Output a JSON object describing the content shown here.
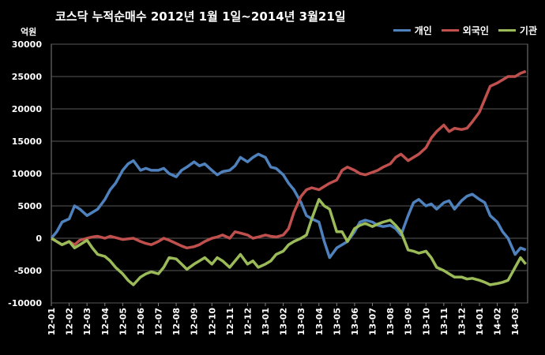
{
  "chart_data": {
    "type": "line",
    "title": "코스닥  누적순매수 2012년 1월 1일~2014년 3월21일",
    "unit_label": "억원",
    "ylim": [
      -10000,
      30000
    ],
    "yticks": [
      30000,
      25000,
      20000,
      15000,
      10000,
      5000,
      0,
      -5000,
      -10000
    ],
    "grid": true,
    "legend_position": "top-right",
    "x_ticks": [
      "12-01",
      "12-02",
      "12-03",
      "12-04",
      "12-05",
      "12-06",
      "12-07",
      "12-08",
      "12-09",
      "12-10",
      "12-11",
      "12-12",
      "13-01",
      "13-02",
      "13-03",
      "13-04",
      "13-05",
      "13-06",
      "13-07",
      "13-08",
      "13-09",
      "13-10",
      "13-11",
      "13-12",
      "14-01",
      "14-02",
      "14-03"
    ],
    "x_range": [
      0,
      26.7
    ],
    "series": [
      {
        "name": "개인",
        "color": "#4f81bd",
        "points": [
          [
            0,
            0
          ],
          [
            0.3,
            1000
          ],
          [
            0.6,
            2500
          ],
          [
            1,
            3000
          ],
          [
            1.3,
            5000
          ],
          [
            1.6,
            4500
          ],
          [
            2,
            3500
          ],
          [
            2.3,
            4000
          ],
          [
            2.6,
            4500
          ],
          [
            3,
            6000
          ],
          [
            3.3,
            7500
          ],
          [
            3.6,
            8500
          ],
          [
            4,
            10500
          ],
          [
            4.3,
            11500
          ],
          [
            4.6,
            12000
          ],
          [
            5,
            10500
          ],
          [
            5.3,
            10800
          ],
          [
            5.6,
            10500
          ],
          [
            6,
            10500
          ],
          [
            6.3,
            10800
          ],
          [
            6.6,
            10000
          ],
          [
            7,
            9500
          ],
          [
            7.3,
            10500
          ],
          [
            7.6,
            11000
          ],
          [
            8,
            11800
          ],
          [
            8.3,
            11200
          ],
          [
            8.6,
            11500
          ],
          [
            9,
            10500
          ],
          [
            9.3,
            9800
          ],
          [
            9.6,
            10300
          ],
          [
            10,
            10500
          ],
          [
            10.3,
            11200
          ],
          [
            10.6,
            12500
          ],
          [
            11,
            11800
          ],
          [
            11.3,
            12500
          ],
          [
            11.6,
            13000
          ],
          [
            12,
            12500
          ],
          [
            12.3,
            11000
          ],
          [
            12.6,
            10800
          ],
          [
            13,
            9800
          ],
          [
            13.3,
            8500
          ],
          [
            13.6,
            7500
          ],
          [
            14,
            5500
          ],
          [
            14.3,
            3500
          ],
          [
            14.6,
            3000
          ],
          [
            15,
            2500
          ],
          [
            15.3,
            -500
          ],
          [
            15.6,
            -3000
          ],
          [
            16,
            -1500
          ],
          [
            16.3,
            -1000
          ],
          [
            16.6,
            -500
          ],
          [
            17,
            1000
          ],
          [
            17.3,
            2500
          ],
          [
            17.6,
            2800
          ],
          [
            18,
            2500
          ],
          [
            18.3,
            2000
          ],
          [
            18.6,
            1800
          ],
          [
            19,
            2000
          ],
          [
            19.3,
            1500
          ],
          [
            19.6,
            500
          ],
          [
            20,
            3500
          ],
          [
            20.3,
            5500
          ],
          [
            20.6,
            6000
          ],
          [
            21,
            5000
          ],
          [
            21.3,
            5300
          ],
          [
            21.6,
            4500
          ],
          [
            22,
            5500
          ],
          [
            22.3,
            5800
          ],
          [
            22.6,
            4500
          ],
          [
            23,
            5800
          ],
          [
            23.3,
            6500
          ],
          [
            23.6,
            6800
          ],
          [
            24,
            6000
          ],
          [
            24.3,
            5500
          ],
          [
            24.6,
            3500
          ],
          [
            25,
            2500
          ],
          [
            25.3,
            1000
          ],
          [
            25.6,
            0
          ],
          [
            26,
            -2500
          ],
          [
            26.3,
            -1500
          ],
          [
            26.6,
            -1800
          ]
        ]
      },
      {
        "name": "외국인",
        "color": "#c0504d",
        "points": [
          [
            0,
            0
          ],
          [
            0.3,
            -500
          ],
          [
            0.6,
            -1000
          ],
          [
            1,
            -500
          ],
          [
            1.3,
            -1000
          ],
          [
            1.6,
            -300
          ],
          [
            2,
            0
          ],
          [
            2.3,
            200
          ],
          [
            2.6,
            300
          ],
          [
            3,
            0
          ],
          [
            3.3,
            300
          ],
          [
            3.6,
            100
          ],
          [
            4,
            -200
          ],
          [
            4.3,
            -100
          ],
          [
            4.6,
            0
          ],
          [
            5,
            -500
          ],
          [
            5.3,
            -800
          ],
          [
            5.6,
            -1000
          ],
          [
            6,
            -500
          ],
          [
            6.3,
            0
          ],
          [
            6.6,
            -300
          ],
          [
            7,
            -800
          ],
          [
            7.3,
            -1200
          ],
          [
            7.6,
            -1500
          ],
          [
            8,
            -1300
          ],
          [
            8.3,
            -1000
          ],
          [
            8.6,
            -500
          ],
          [
            9,
            0
          ],
          [
            9.3,
            200
          ],
          [
            9.6,
            500
          ],
          [
            10,
            0
          ],
          [
            10.3,
            1000
          ],
          [
            10.6,
            800
          ],
          [
            11,
            500
          ],
          [
            11.3,
            0
          ],
          [
            11.6,
            200
          ],
          [
            12,
            500
          ],
          [
            12.3,
            300
          ],
          [
            12.6,
            200
          ],
          [
            13,
            500
          ],
          [
            13.3,
            1500
          ],
          [
            13.6,
            4000
          ],
          [
            14,
            6500
          ],
          [
            14.3,
            7500
          ],
          [
            14.6,
            7800
          ],
          [
            15,
            7500
          ],
          [
            15.3,
            8000
          ],
          [
            15.6,
            8500
          ],
          [
            16,
            9000
          ],
          [
            16.3,
            10500
          ],
          [
            16.6,
            11000
          ],
          [
            17,
            10500
          ],
          [
            17.3,
            10000
          ],
          [
            17.6,
            9800
          ],
          [
            18,
            10200
          ],
          [
            18.3,
            10500
          ],
          [
            18.6,
            11000
          ],
          [
            19,
            11500
          ],
          [
            19.3,
            12500
          ],
          [
            19.6,
            13000
          ],
          [
            20,
            12000
          ],
          [
            20.3,
            12500
          ],
          [
            20.6,
            13000
          ],
          [
            21,
            14000
          ],
          [
            21.3,
            15500
          ],
          [
            21.6,
            16500
          ],
          [
            22,
            17500
          ],
          [
            22.3,
            16500
          ],
          [
            22.6,
            17000
          ],
          [
            23,
            16800
          ],
          [
            23.3,
            17000
          ],
          [
            23.6,
            18000
          ],
          [
            24,
            19500
          ],
          [
            24.3,
            21500
          ],
          [
            24.6,
            23500
          ],
          [
            25,
            24000
          ],
          [
            25.3,
            24500
          ],
          [
            25.6,
            25000
          ],
          [
            26,
            25000
          ],
          [
            26.3,
            25500
          ],
          [
            26.6,
            25800
          ]
        ]
      },
      {
        "name": "기관",
        "color": "#9bbb59",
        "points": [
          [
            0,
            0
          ],
          [
            0.3,
            -500
          ],
          [
            0.6,
            -1000
          ],
          [
            1,
            -500
          ],
          [
            1.3,
            -1500
          ],
          [
            1.6,
            -1000
          ],
          [
            2,
            -300
          ],
          [
            2.3,
            -1500
          ],
          [
            2.6,
            -2500
          ],
          [
            3,
            -2800
          ],
          [
            3.3,
            -3500
          ],
          [
            3.6,
            -4500
          ],
          [
            4,
            -5500
          ],
          [
            4.3,
            -6500
          ],
          [
            4.6,
            -7200
          ],
          [
            5,
            -6000
          ],
          [
            5.3,
            -5500
          ],
          [
            5.6,
            -5200
          ],
          [
            6,
            -5500
          ],
          [
            6.3,
            -4500
          ],
          [
            6.6,
            -3000
          ],
          [
            7,
            -3200
          ],
          [
            7.3,
            -4000
          ],
          [
            7.6,
            -4800
          ],
          [
            8,
            -4000
          ],
          [
            8.3,
            -3500
          ],
          [
            8.6,
            -3000
          ],
          [
            9,
            -4000
          ],
          [
            9.3,
            -3000
          ],
          [
            9.6,
            -3500
          ],
          [
            10,
            -4500
          ],
          [
            10.3,
            -3500
          ],
          [
            10.6,
            -2500
          ],
          [
            11,
            -4000
          ],
          [
            11.3,
            -3500
          ],
          [
            11.6,
            -4500
          ],
          [
            12,
            -4000
          ],
          [
            12.3,
            -3500
          ],
          [
            12.6,
            -2500
          ],
          [
            13,
            -2000
          ],
          [
            13.3,
            -1000
          ],
          [
            13.6,
            -500
          ],
          [
            14,
            0
          ],
          [
            14.3,
            500
          ],
          [
            14.6,
            3000
          ],
          [
            15,
            6000
          ],
          [
            15.3,
            5000
          ],
          [
            15.6,
            4500
          ],
          [
            16,
            1000
          ],
          [
            16.3,
            1000
          ],
          [
            16.6,
            -500
          ],
          [
            17,
            1500
          ],
          [
            17.3,
            2000
          ],
          [
            17.6,
            2300
          ],
          [
            18,
            1800
          ],
          [
            18.3,
            2200
          ],
          [
            18.6,
            2500
          ],
          [
            19,
            2800
          ],
          [
            19.3,
            2000
          ],
          [
            19.6,
            1000
          ],
          [
            20,
            -1800
          ],
          [
            20.3,
            -2000
          ],
          [
            20.6,
            -2300
          ],
          [
            21,
            -2000
          ],
          [
            21.3,
            -3000
          ],
          [
            21.6,
            -4500
          ],
          [
            22,
            -5000
          ],
          [
            22.3,
            -5500
          ],
          [
            22.6,
            -6000
          ],
          [
            23,
            -6000
          ],
          [
            23.3,
            -6300
          ],
          [
            23.6,
            -6200
          ],
          [
            24,
            -6500
          ],
          [
            24.3,
            -6800
          ],
          [
            24.6,
            -7200
          ],
          [
            25,
            -7000
          ],
          [
            25.3,
            -6800
          ],
          [
            25.6,
            -6500
          ],
          [
            26,
            -4500
          ],
          [
            26.3,
            -3000
          ],
          [
            26.6,
            -4000
          ]
        ]
      }
    ]
  }
}
